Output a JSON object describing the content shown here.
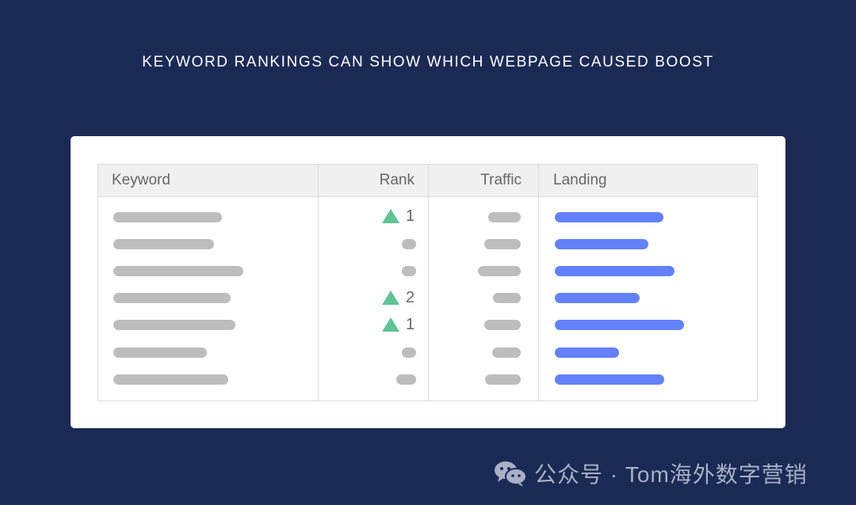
{
  "title": "KEYWORD RANKINGS CAN SHOW WHICH WEBPAGE CAUSED BOOST",
  "table": {
    "headers": [
      "Keyword",
      "Rank",
      "Traffic",
      "Landing"
    ],
    "rows": [
      {
        "rank_change": "1"
      },
      {
        "rank_change": null
      },
      {
        "rank_change": null
      },
      {
        "rank_change": "2"
      },
      {
        "rank_change": "1"
      },
      {
        "rank_change": null
      },
      {
        "rank_change": null
      }
    ]
  },
  "colors": {
    "background": "#1b2a55",
    "rank_up": "#5cc495",
    "landing_bar": "#6381fb",
    "placeholder_bar": "#bdbdbd"
  },
  "icons": {
    "rank_up": "triangle-up-icon",
    "watermark": "wechat-icon"
  },
  "watermark": "公众号 · Tom海外数字营销"
}
